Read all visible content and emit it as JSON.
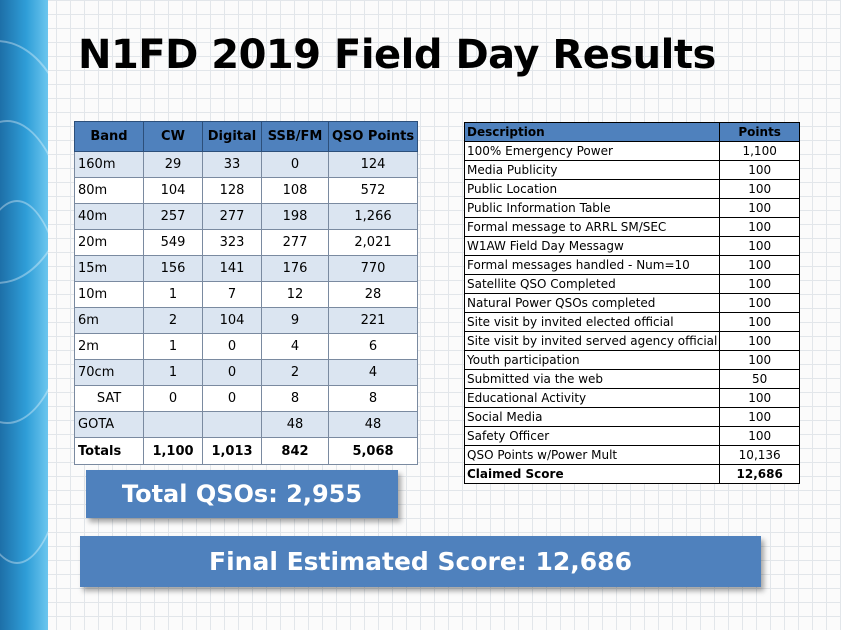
{
  "title": "N1FD 2019 Field Day Results",
  "band_table": {
    "headers": [
      "Band",
      "CW",
      "Digital",
      "SSB/FM",
      "QSO Points"
    ],
    "rows": [
      [
        "160m",
        "29",
        "33",
        "0",
        "124"
      ],
      [
        "80m",
        "104",
        "128",
        "108",
        "572"
      ],
      [
        "40m",
        "257",
        "277",
        "198",
        "1,266"
      ],
      [
        "20m",
        "549",
        "323",
        "277",
        "2,021"
      ],
      [
        "15m",
        "156",
        "141",
        "176",
        "770"
      ],
      [
        "10m",
        "1",
        "7",
        "12",
        "28"
      ],
      [
        "6m",
        "2",
        "104",
        "9",
        "221"
      ],
      [
        "2m",
        "1",
        "0",
        "4",
        "6"
      ],
      [
        "70cm",
        "1",
        "0",
        "2",
        "4"
      ],
      [
        "SAT",
        "0",
        "0",
        "8",
        "8"
      ],
      [
        "GOTA",
        "",
        "",
        "48",
        "48"
      ]
    ],
    "totals": [
      "Totals",
      "1,100",
      "1,013",
      "842",
      "5,068"
    ]
  },
  "points_table": {
    "headers": [
      "Description",
      "Points"
    ],
    "rows": [
      [
        "100% Emergency Power",
        "1,100"
      ],
      [
        "Media Publicity",
        "100"
      ],
      [
        "Public Location",
        "100"
      ],
      [
        "Public Information Table",
        "100"
      ],
      [
        "Formal message to ARRL SM/SEC",
        "100"
      ],
      [
        "W1AW Field Day Messagw",
        "100"
      ],
      [
        "Formal messages handled - Num=10",
        "100"
      ],
      [
        "Satellite QSO Completed",
        "100"
      ],
      [
        "Natural Power QSOs completed",
        "100"
      ],
      [
        "Site visit by invited elected official",
        "100"
      ],
      [
        "Site visit by invited served agency official",
        "100"
      ],
      [
        "Youth participation",
        "100"
      ],
      [
        "Submitted via the web",
        "50"
      ],
      [
        "Educational Activity",
        "100"
      ],
      [
        "Social Media",
        "100"
      ],
      [
        "Safety Officer",
        "100"
      ],
      [
        "QSO Points w/Power Mult",
        "10,136"
      ],
      [
        "Claimed Score",
        "12,686"
      ]
    ]
  },
  "total_qsos": "Total QSOs: 2,955",
  "final_score": "Final Estimated Score: 12,686",
  "colors": {
    "header_blue": "#4f81bd",
    "row_stripe": "#dbe5f1",
    "sidebar_blue": "#2f9ed8"
  }
}
